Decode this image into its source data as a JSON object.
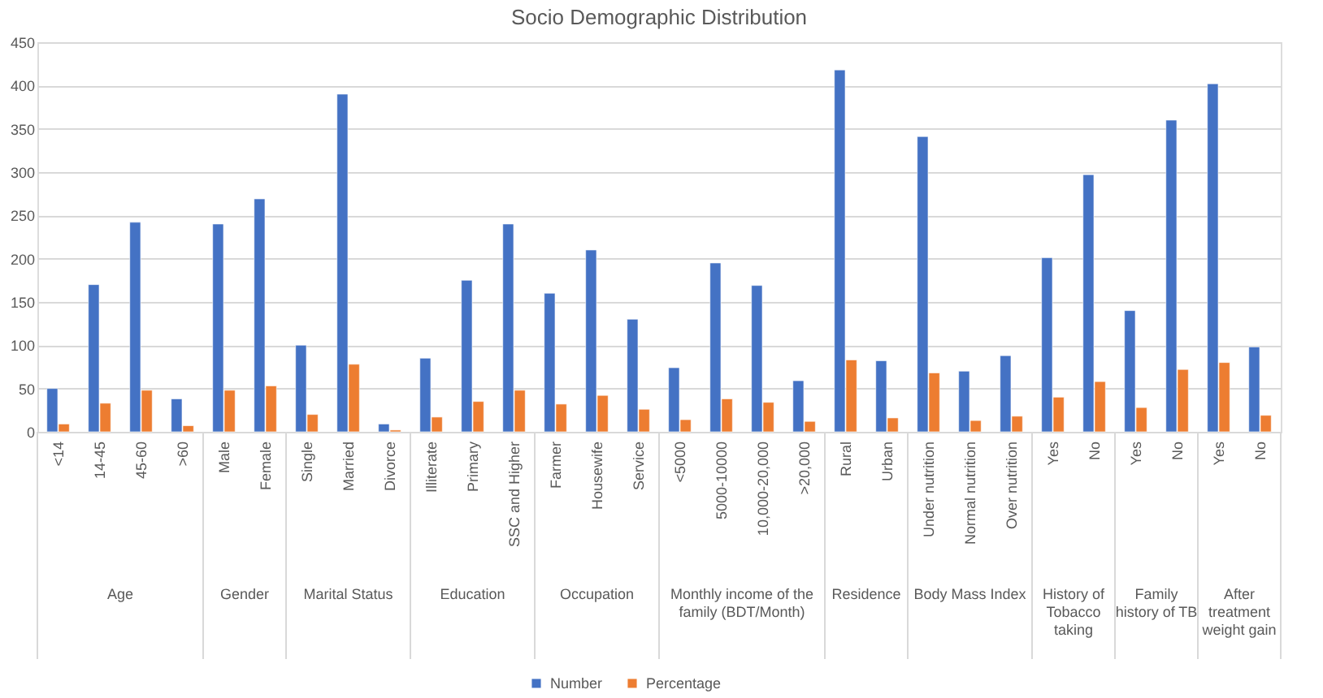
{
  "chart_data": {
    "type": "bar",
    "title": "Socio Demographic Distribution",
    "categories": [
      "<14",
      "14-45",
      "45-60",
      ">60",
      "Male",
      "Female",
      "Single",
      "Married",
      "Divorce",
      "Illiterate",
      "Primary",
      "SSC and Higher",
      "Farmer",
      "Housewife",
      "Service",
      "<5000",
      "5000-10000",
      "10,000-20,000",
      ">20,000",
      "Rural",
      "Urban",
      "Under nutrition",
      "Normal nutrition",
      "Over nutrition",
      "Yes",
      "No",
      "Yes",
      "No",
      "Yes",
      "No"
    ],
    "series": [
      {
        "name": "Number",
        "color": "#4472c4",
        "values": [
          50,
          170,
          242,
          38,
          240,
          269,
          100,
          390,
          9,
          85,
          175,
          240,
          160,
          210,
          130,
          74,
          195,
          169,
          59,
          418,
          82,
          341,
          70,
          88,
          201,
          297,
          140,
          360,
          402,
          98
        ]
      },
      {
        "name": "Percentage",
        "color": "#ed7d31",
        "values": [
          9,
          33,
          48,
          7,
          48,
          53,
          20,
          78,
          2,
          17,
          35,
          48,
          32,
          42,
          26,
          14,
          38,
          34,
          12,
          83,
          16,
          68,
          13,
          18,
          40,
          58,
          28,
          72,
          80,
          19
        ]
      }
    ],
    "annotations": [
      "Age",
      "Gender",
      "Marital Status",
      "Education",
      "Occupation",
      "Monthly income of the family (BDT/Month)",
      "Residence",
      "Body Mass Index",
      "History of Tobacco taking",
      "Family history of TB",
      "After treatment weight gain"
    ],
    "ylim": [
      0,
      450
    ],
    "yticks": [
      0,
      50,
      100,
      150,
      200,
      250,
      300,
      350,
      400,
      450
    ],
    "grid": "y",
    "legend": "bottom"
  }
}
